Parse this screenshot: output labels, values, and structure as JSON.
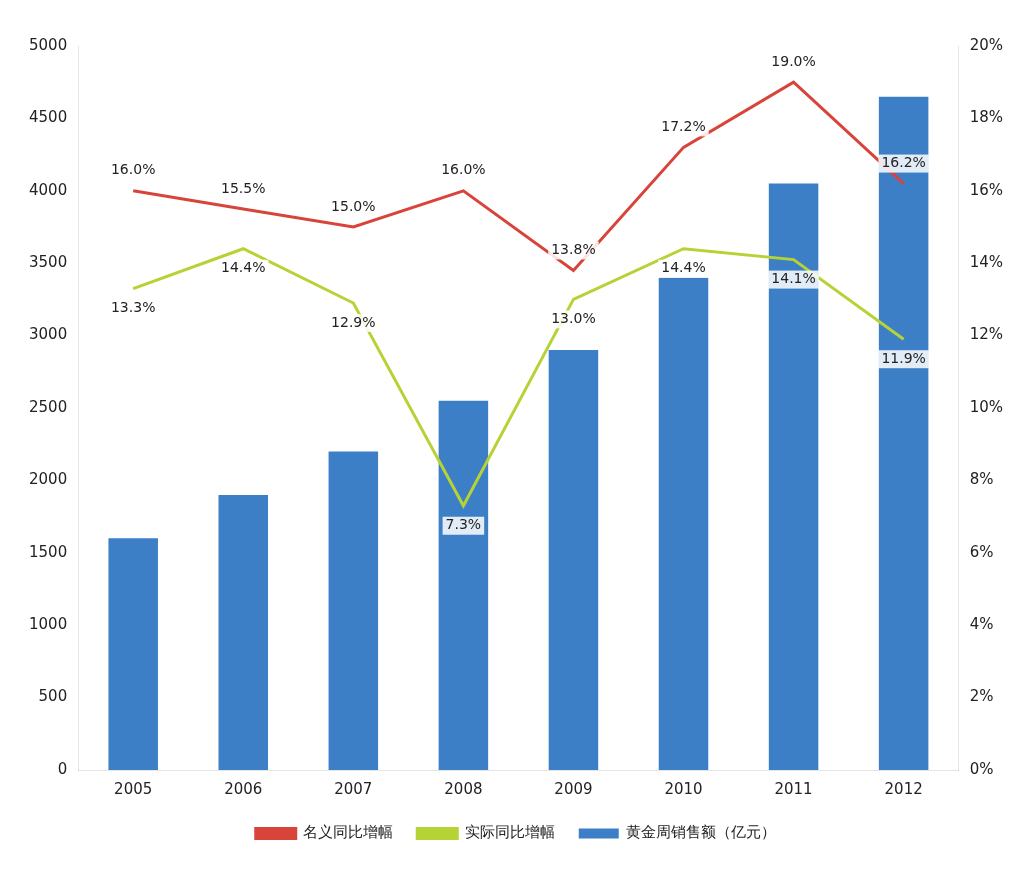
{
  "chart_data": {
    "type": "bar",
    "categories": [
      "2005",
      "2006",
      "2007",
      "2008",
      "2009",
      "2010",
      "2011",
      "2012"
    ],
    "series": [
      {
        "name": "黄金周销售额（亿元）",
        "type": "bar",
        "color": "#3d7fc7",
        "axis": "y",
        "values": [
          1600,
          1900,
          2200,
          2550,
          2900,
          3400,
          4050,
          4650
        ]
      },
      {
        "name": "名义同比增幅",
        "type": "line",
        "color": "#d9443a",
        "axis": "y2",
        "marker": "none",
        "data_labels": true,
        "values": [
          16.0,
          15.5,
          15.0,
          16.0,
          13.8,
          17.2,
          19.0,
          16.2
        ],
        "value_labels": [
          "16.0%",
          "15.5%",
          "15.0%",
          "16.0%",
          "13.8%",
          "17.2%",
          "19.0%",
          "16.2%"
        ]
      },
      {
        "name": "实际同比增幅",
        "type": "line",
        "color": "#b5d334",
        "axis": "y2",
        "marker": "none",
        "data_labels": true,
        "values": [
          13.3,
          14.4,
          12.9,
          7.3,
          13.0,
          14.4,
          14.1,
          11.9
        ],
        "value_labels": [
          "13.3%",
          "14.4%",
          "12.9%",
          "7.3%",
          "13.0%",
          "14.4%",
          "14.1%",
          "11.9%"
        ]
      }
    ],
    "ylim": [
      0,
      5000
    ],
    "yticks": [
      0,
      500,
      1000,
      1500,
      2000,
      2500,
      3000,
      3500,
      4000,
      4500,
      5000
    ],
    "y2lim": [
      0,
      20
    ],
    "y2ticks": [
      {
        "value": 0,
        "label": "0%"
      },
      {
        "value": 2,
        "label": "2%"
      },
      {
        "value": 4,
        "label": "4%"
      },
      {
        "value": 6,
        "label": "6%"
      },
      {
        "value": 8,
        "label": "8%"
      },
      {
        "value": 10,
        "label": "10%"
      },
      {
        "value": 12,
        "label": "12%"
      },
      {
        "value": 14,
        "label": "14%"
      },
      {
        "value": 16,
        "label": "16%"
      },
      {
        "value": 18,
        "label": "18%"
      },
      {
        "value": 20,
        "label": "20%"
      }
    ],
    "grid": false,
    "legend": "bottom"
  }
}
